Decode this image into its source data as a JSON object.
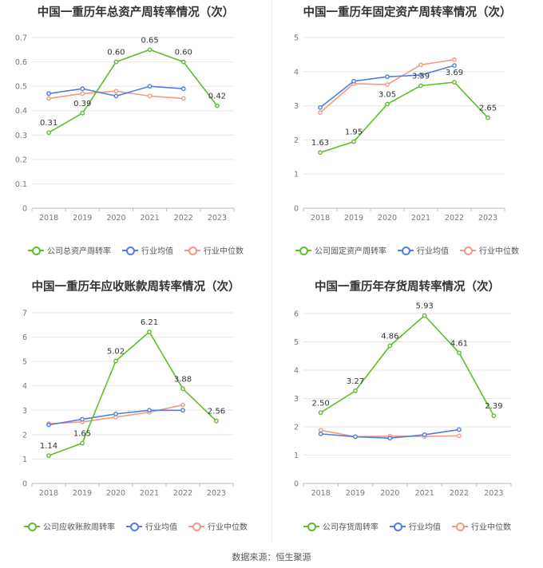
{
  "colors": {
    "company": "#5cbf2a",
    "industry_avg": "#4f7ee0",
    "industry_median": "#f19a7d",
    "grid": "#e6e6e6",
    "axis_text": "#777777",
    "title": "#333333"
  },
  "source": "数据来源：恒生聚源",
  "chart_data": [
    {
      "type": "line",
      "title": "中国一重历年总资产周转率情况（次）",
      "categories": [
        "2018",
        "2019",
        "2020",
        "2021",
        "2022",
        "2023"
      ],
      "ylim": [
        0,
        0.7
      ],
      "yticks": [
        "0",
        "0.1",
        "0.2",
        "0.3",
        "0.4",
        "0.5",
        "0.6",
        "0.7"
      ],
      "series": [
        {
          "name": "公司总资产周转率",
          "role": "company",
          "values": [
            0.31,
            0.39,
            0.6,
            0.65,
            0.6,
            0.42
          ],
          "labels": [
            "0.31",
            "0.39",
            "0.60",
            "0.65",
            "0.60",
            "0.42"
          ]
        },
        {
          "name": "行业均值",
          "role": "industry_avg",
          "values": [
            0.47,
            0.49,
            0.46,
            0.5,
            0.49,
            null
          ]
        },
        {
          "name": "行业中位数",
          "role": "industry_median",
          "values": [
            0.45,
            0.47,
            0.48,
            0.46,
            0.45,
            null
          ]
        }
      ]
    },
    {
      "type": "line",
      "title": "中国一重历年固定资产周转率情况（次）",
      "categories": [
        "2018",
        "2019",
        "2020",
        "2021",
        "2022",
        "2023"
      ],
      "ylim": [
        0,
        5
      ],
      "yticks": [
        "0",
        "1",
        "2",
        "3",
        "4",
        "5"
      ],
      "series": [
        {
          "name": "公司固定资产周转率",
          "role": "company",
          "values": [
            1.63,
            1.95,
            3.05,
            3.59,
            3.69,
            2.65
          ],
          "labels": [
            "1.63",
            "1.95",
            "3.05",
            "3.59",
            "3.69",
            "2.65"
          ]
        },
        {
          "name": "行业均值",
          "role": "industry_avg",
          "values": [
            2.95,
            3.72,
            3.85,
            3.9,
            4.18,
            null
          ]
        },
        {
          "name": "行业中位数",
          "role": "industry_median",
          "values": [
            2.8,
            3.65,
            3.62,
            4.2,
            4.35,
            null
          ]
        }
      ]
    },
    {
      "type": "line",
      "title": "中国一重历年应收账款周转率情况（次）",
      "categories": [
        "2018",
        "2019",
        "2020",
        "2021",
        "2022",
        "2023"
      ],
      "ylim": [
        0,
        7
      ],
      "yticks": [
        "0",
        "1",
        "2",
        "3",
        "4",
        "5",
        "6",
        "7"
      ],
      "series": [
        {
          "name": "公司应收账款周转率",
          "role": "company",
          "values": [
            1.14,
            1.65,
            5.02,
            6.21,
            3.88,
            2.56
          ],
          "labels": [
            "1.14",
            "1.65",
            "5.02",
            "6.21",
            "3.88",
            "2.56"
          ]
        },
        {
          "name": "行业均值",
          "role": "industry_avg",
          "values": [
            2.4,
            2.63,
            2.85,
            3.0,
            3.0,
            null
          ]
        },
        {
          "name": "行业中位数",
          "role": "industry_median",
          "values": [
            2.45,
            2.52,
            2.72,
            2.92,
            3.22,
            null
          ]
        }
      ]
    },
    {
      "type": "line",
      "title": "中国一重历年存货周转率情况（次）",
      "categories": [
        "2018",
        "2019",
        "2020",
        "2021",
        "2022",
        "2023"
      ],
      "ylim": [
        0,
        6
      ],
      "yticks": [
        "0",
        "1",
        "2",
        "3",
        "4",
        "5",
        "6"
      ],
      "series": [
        {
          "name": "公司存货周转率",
          "role": "company",
          "values": [
            2.5,
            3.27,
            4.86,
            5.93,
            4.61,
            2.39
          ],
          "labels": [
            "2.50",
            "3.27",
            "4.86",
            "5.93",
            "4.61",
            "2.39"
          ]
        },
        {
          "name": "行业均值",
          "role": "industry_avg",
          "values": [
            1.75,
            1.65,
            1.6,
            1.72,
            1.9,
            null
          ]
        },
        {
          "name": "行业中位数",
          "role": "industry_median",
          "values": [
            1.88,
            1.65,
            1.67,
            1.66,
            1.68,
            null
          ]
        }
      ]
    }
  ]
}
